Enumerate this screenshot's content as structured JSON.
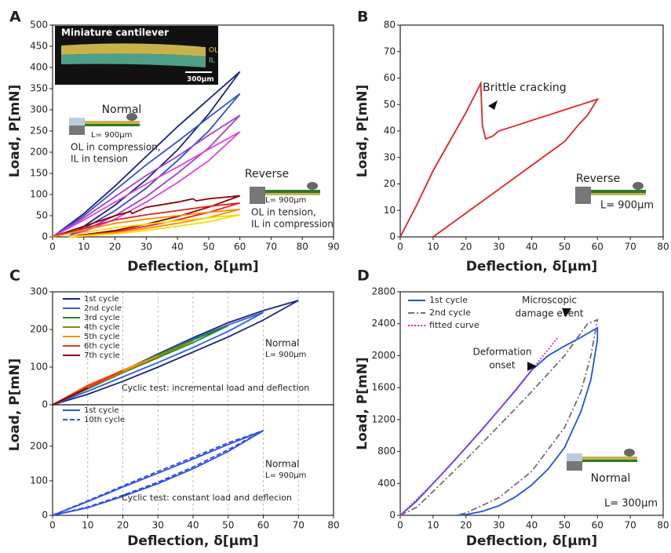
{
  "chart_data": [
    {
      "type": "line",
      "label": "A",
      "xlabel": "Deflection, δ[μm]",
      "ylabel": "Load, P[mN]",
      "xlim": [
        0,
        90
      ],
      "ylim": [
        0,
        500
      ],
      "xticks": [
        0,
        10,
        20,
        30,
        40,
        50,
        60,
        70,
        80,
        90
      ],
      "yticks": [
        0,
        50,
        100,
        150,
        200,
        250,
        300,
        350,
        400,
        450,
        500
      ],
      "series": [
        {
          "color": "#1a237e",
          "x": [
            0,
            10,
            20,
            30,
            40,
            50,
            60,
            50,
            40,
            30,
            20,
            10,
            5
          ],
          "values": [
            0,
            55,
            120,
            190,
            260,
            325,
            390,
            290,
            205,
            135,
            75,
            25,
            0
          ]
        },
        {
          "color": "#3050d0",
          "x": [
            0,
            10,
            20,
            30,
            40,
            50,
            60,
            50,
            40,
            30,
            20,
            10,
            5
          ],
          "values": [
            0,
            50,
            110,
            170,
            225,
            282,
            338,
            250,
            180,
            115,
            62,
            20,
            0
          ]
        },
        {
          "color": "#a040d0",
          "x": [
            0,
            10,
            20,
            30,
            40,
            50,
            60,
            50,
            40,
            30,
            20,
            10,
            5
          ],
          "values": [
            0,
            45,
            95,
            145,
            190,
            240,
            287,
            210,
            150,
            95,
            50,
            15,
            0
          ]
        },
        {
          "color": "#e040e0",
          "x": [
            0,
            10,
            20,
            30,
            40,
            50,
            60,
            50,
            40,
            30,
            20,
            10,
            5
          ],
          "values": [
            0,
            40,
            82,
            125,
            165,
            207,
            248,
            180,
            128,
            82,
            42,
            12,
            0
          ]
        },
        {
          "color": "#8b0000",
          "x": [
            0,
            10,
            20,
            25,
            25.5,
            30,
            40,
            45,
            46,
            50,
            60,
            50,
            40,
            30,
            20,
            10,
            5
          ],
          "values": [
            0,
            25,
            50,
            60,
            55,
            70,
            82,
            90,
            85,
            90,
            97,
            70,
            48,
            30,
            15,
            5,
            0
          ]
        },
        {
          "color": "#e02020",
          "x": [
            0,
            10,
            20,
            30,
            40,
            50,
            60,
            50,
            40,
            30,
            20,
            10,
            5
          ],
          "values": [
            0,
            20,
            40,
            52,
            62,
            72,
            80,
            58,
            40,
            25,
            12,
            4,
            0
          ]
        },
        {
          "color": "#ff8c00",
          "x": [
            0,
            10,
            20,
            30,
            40,
            50,
            60,
            50,
            40,
            30,
            20,
            10,
            5
          ],
          "values": [
            0,
            16,
            32,
            42,
            50,
            58,
            65,
            46,
            32,
            20,
            10,
            3,
            0
          ]
        },
        {
          "color": "#f0e000",
          "x": [
            5,
            10,
            20,
            30,
            40,
            50,
            60,
            50,
            40,
            30,
            20,
            10,
            5
          ],
          "values": [
            0,
            10,
            22,
            30,
            38,
            45,
            52,
            36,
            25,
            15,
            7,
            2,
            0
          ]
        }
      ],
      "annotations": [
        "Miniature cantilever",
        "OL",
        "IL",
        "300μm",
        "Normal",
        "L= 900μm",
        "OL in compression,",
        "IL in tension",
        "Reverse",
        "L= 900μm",
        "OL in tension,",
        "IL in compression"
      ]
    },
    {
      "type": "line",
      "label": "B",
      "xlabel": "Deflection, δ[μm]",
      "ylabel": "Load, P[mN]",
      "xlim": [
        0,
        80
      ],
      "ylim": [
        0,
        80
      ],
      "xticks": [
        0,
        10,
        20,
        30,
        40,
        50,
        60,
        70,
        80
      ],
      "yticks": [
        0,
        10,
        20,
        30,
        40,
        50,
        60,
        70,
        80
      ],
      "series": [
        {
          "color": "#e82020",
          "x": [
            0,
            5,
            10,
            15,
            20,
            24.5,
            25,
            26,
            28,
            30,
            35,
            40,
            45,
            50,
            55,
            60,
            57,
            54,
            50,
            40,
            30,
            20,
            10
          ],
          "values": [
            0,
            12,
            25,
            36,
            47,
            58,
            42,
            37,
            38,
            40,
            42,
            44,
            46,
            48,
            50,
            52,
            46,
            42,
            36,
            27,
            18,
            9,
            0
          ]
        }
      ],
      "annotations": [
        "Brittle cracking",
        "Reverse",
        "L= 900μm"
      ]
    },
    {
      "type": "line",
      "label": "C",
      "ylabel": "Load, P[mN]",
      "xlim": [
        0,
        80
      ],
      "ylim": [
        0,
        300
      ],
      "yticks": [
        0,
        100,
        200,
        300
      ],
      "grid": true,
      "legend": "upper left",
      "series": [
        {
          "name": "1st cycle",
          "color": "#1a237e",
          "x": [
            0,
            10,
            20,
            30,
            40,
            50,
            60,
            70,
            60,
            50,
            40,
            30,
            20,
            10,
            0
          ],
          "values": [
            0,
            45,
            90,
            135,
            178,
            218,
            250,
            277,
            225,
            180,
            140,
            100,
            62,
            28,
            0
          ]
        },
        {
          "name": "2nd cycle",
          "color": "#2f5fe0",
          "x": [
            0,
            10,
            20,
            30,
            40,
            50,
            60,
            50,
            40,
            30,
            20,
            10,
            0
          ],
          "values": [
            0,
            45,
            90,
            133,
            175,
            212,
            245,
            195,
            152,
            112,
            74,
            36,
            0
          ]
        },
        {
          "name": "3rd cycle",
          "color": "#1e8a2e",
          "x": [
            0,
            10,
            20,
            30,
            40,
            50,
            40,
            30,
            20,
            10,
            0
          ],
          "values": [
            0,
            45,
            90,
            133,
            172,
            210,
            165,
            125,
            85,
            42,
            0
          ]
        },
        {
          "name": "4th cycle",
          "color": "#8a8a10",
          "x": [
            0,
            10,
            20,
            30,
            40,
            30,
            20,
            10,
            0
          ],
          "values": [
            0,
            45,
            88,
            130,
            170,
            128,
            88,
            45,
            0
          ]
        },
        {
          "name": "5th cycle",
          "color": "#ff8c00",
          "x": [
            0,
            10,
            20,
            30,
            20,
            10,
            0
          ],
          "values": [
            0,
            45,
            88,
            130,
            92,
            52,
            0
          ]
        },
        {
          "name": "6th cycle",
          "color": "#f03030",
          "x": [
            0,
            10,
            20,
            10,
            0
          ],
          "values": [
            0,
            45,
            90,
            50,
            0
          ]
        },
        {
          "name": "7th cycle",
          "color": "#8b0000",
          "x": [
            0,
            10,
            5,
            0
          ],
          "values": [
            0,
            45,
            22,
            0
          ]
        }
      ],
      "annotations": [
        "Normal",
        "L= 900μm",
        "Cyclic test: incremental load and deflection"
      ]
    },
    {
      "type": "line",
      "xlabel": "Deflection, δ[μm]",
      "xlim": [
        0,
        80
      ],
      "ylim": [
        0,
        320
      ],
      "xticks": [
        0,
        10,
        20,
        30,
        40,
        50,
        60,
        70,
        80
      ],
      "yticks": [
        0,
        100,
        200
      ],
      "grid": true,
      "legend": "upper left",
      "series": [
        {
          "name": "1st cycle",
          "color": "#2f4fe0",
          "x": [
            0,
            10,
            20,
            30,
            40,
            50,
            60,
            50,
            40,
            30,
            20,
            10,
            0
          ],
          "values": [
            0,
            40,
            82,
            122,
            163,
            205,
            245,
            185,
            135,
            92,
            55,
            22,
            0
          ]
        },
        {
          "name": "10th cycle",
          "color": "#2f4fe0",
          "dash": "dashed",
          "x": [
            0,
            10,
            20,
            30,
            40,
            50,
            60,
            50,
            40,
            30,
            20,
            10,
            0
          ],
          "values": [
            0,
            42,
            85,
            127,
            168,
            210,
            245,
            190,
            140,
            96,
            58,
            24,
            0
          ]
        }
      ],
      "annotations": [
        "Normal",
        "L= 900μm",
        "Cyclic test: constant load and deflecion"
      ]
    },
    {
      "type": "line",
      "label": "D",
      "xlabel": "Deflection, δ[μm]",
      "ylabel": "Load, P[mN]",
      "xlim": [
        0,
        80
      ],
      "ylim": [
        0,
        2800
      ],
      "xticks": [
        0,
        10,
        20,
        30,
        40,
        50,
        60,
        70,
        80
      ],
      "yticks": [
        0,
        400,
        800,
        1200,
        1600,
        2000,
        2400,
        2800
      ],
      "legend": "upper left",
      "series": [
        {
          "name": "1st cycle",
          "color": "#2050e0",
          "x": [
            0,
            5,
            10,
            15,
            20,
            25,
            30,
            35,
            40,
            45,
            50,
            55,
            60,
            60,
            58,
            55,
            50,
            45,
            40,
            35,
            30,
            25,
            20,
            17
          ],
          "values": [
            0,
            180,
            400,
            620,
            850,
            1080,
            1320,
            1560,
            1820,
            2000,
            2120,
            2230,
            2350,
            2200,
            1700,
            1300,
            850,
            580,
            380,
            230,
            120,
            50,
            10,
            0
          ]
        },
        {
          "name": "2nd cycle",
          "color": "#707070",
          "dash": "dashdot",
          "x": [
            0,
            5,
            10,
            20,
            30,
            40,
            50,
            57,
            60,
            58,
            55,
            50,
            40,
            30,
            20,
            17
          ],
          "values": [
            0,
            100,
            300,
            700,
            1120,
            1550,
            2000,
            2400,
            2450,
            2000,
            1550,
            1100,
            550,
            220,
            30,
            0
          ]
        },
        {
          "name": "fitted curve",
          "color": "#e020e0",
          "dash": "dotted",
          "x": [
            0,
            10,
            20,
            30,
            40,
            48
          ],
          "values": [
            0,
            400,
            850,
            1320,
            1820,
            2230
          ]
        }
      ],
      "annotations": [
        "Microscopic",
        "damage event",
        "Deformation",
        "onset",
        "Normal",
        "L= 300μm"
      ]
    }
  ]
}
